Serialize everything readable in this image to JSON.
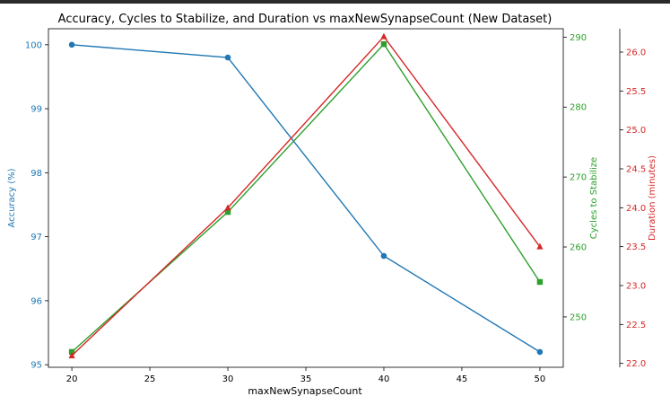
{
  "chart_data": {
    "type": "line",
    "title": "Accuracy, Cycles to Stabilize, and Duration vs maxNewSynapseCount (New Dataset)",
    "xlabel": "maxNewSynapseCount",
    "x": [
      20,
      30,
      40,
      50
    ],
    "xlim": [
      18.5,
      51.5
    ],
    "xticks": [
      20,
      25,
      30,
      35,
      40,
      45,
      50
    ],
    "grid": false,
    "legend": "none",
    "series": [
      {
        "name": "Accuracy (%)",
        "values": [
          100.0,
          99.8,
          96.7,
          95.2
        ],
        "color": "#1f77b4",
        "marker": "circle",
        "axis": "left",
        "ylim": [
          94.96,
          100.25
        ],
        "yticks": [
          95,
          96,
          97,
          98,
          99,
          100
        ],
        "tick_labels": [
          "95",
          "96",
          "97",
          "98",
          "99",
          "100"
        ]
      },
      {
        "name": "Cycles to Stabilize",
        "values": [
          245,
          265,
          289,
          255
        ],
        "color": "#2ca02c",
        "marker": "square",
        "axis": "right",
        "ylim": [
          242.8,
          291.2
        ],
        "yticks": [
          250,
          260,
          270,
          280,
          290
        ],
        "tick_labels": [
          "250",
          "260",
          "270",
          "280",
          "290"
        ]
      },
      {
        "name": "Duration (minutes)",
        "values": [
          22.1,
          24.0,
          26.2,
          23.5
        ],
        "color": "#d62728",
        "marker": "triangle",
        "axis": "right-outer",
        "ylim": [
          21.95,
          26.3
        ],
        "yticks": [
          22.0,
          22.5,
          23.0,
          23.5,
          24.0,
          24.5,
          25.0,
          25.5,
          26.0
        ],
        "tick_labels": [
          "22.0",
          "22.5",
          "23.0",
          "23.5",
          "24.0",
          "24.5",
          "25.0",
          "25.5",
          "26.0"
        ]
      }
    ]
  }
}
